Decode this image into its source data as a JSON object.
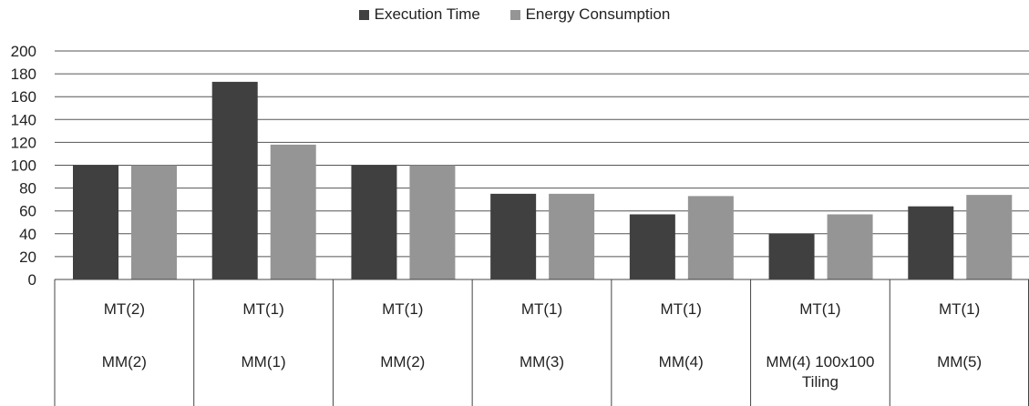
{
  "legend": {
    "series_0": "Execution Time",
    "series_1": "Energy Consumption"
  },
  "colors": {
    "execution_time": "#404040",
    "energy_consumption": "#959595",
    "gridline": "#555555"
  },
  "chart_data": {
    "type": "bar",
    "title": "",
    "xlabel": "",
    "ylabel": "",
    "ylim": [
      0,
      200
    ],
    "yticks": [
      0,
      20,
      40,
      60,
      80,
      100,
      120,
      140,
      160,
      180,
      200
    ],
    "grid": true,
    "legend_position": "top-center",
    "categories": [
      [
        "MT(2)",
        "MM(2)"
      ],
      [
        "MT(1)",
        "MM(1)"
      ],
      [
        "MT(1)",
        "MM(2)"
      ],
      [
        "MT(1)",
        "MM(3)"
      ],
      [
        "MT(1)",
        "MM(4)"
      ],
      [
        "MT(1)",
        "MM(4) 100x100",
        "Tiling"
      ],
      [
        "MT(1)",
        "MM(5)"
      ]
    ],
    "series": [
      {
        "name": "Execution Time",
        "values": [
          100,
          173,
          100,
          75,
          57,
          40,
          64
        ]
      },
      {
        "name": "Energy Consumption",
        "values": [
          100,
          118,
          100,
          75,
          73,
          57,
          74
        ]
      }
    ]
  }
}
